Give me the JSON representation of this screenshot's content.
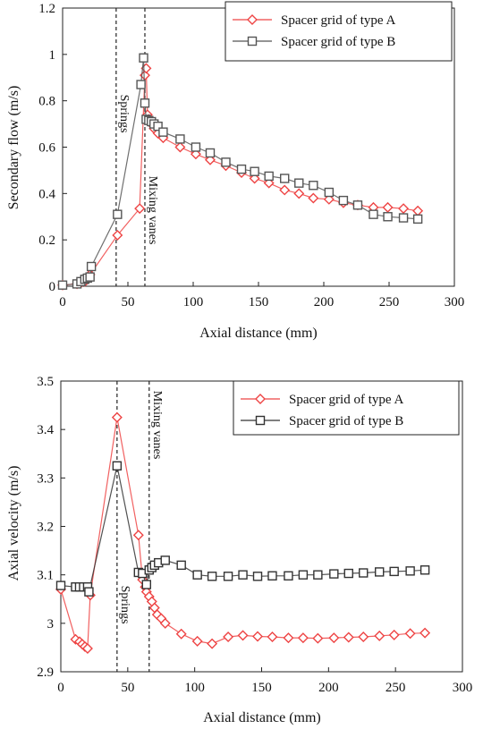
{
  "chart_data": [
    {
      "type": "line",
      "xlabel": "Axial distance (mm)",
      "ylabel": "Secondary flow (m/s)",
      "xlim": [
        0,
        300
      ],
      "ylim": [
        0,
        1.2
      ],
      "xticks": [
        0,
        50,
        100,
        150,
        200,
        250,
        300
      ],
      "xtick_labels": [
        "0",
        "50",
        "100",
        "150",
        "200",
        "250",
        "300"
      ],
      "yticks": [
        0,
        0.2,
        0.4,
        0.6,
        0.8,
        1.0,
        1.2
      ],
      "ytick_labels": [
        "0",
        "0.2",
        "0.4",
        "0.6",
        "0.8",
        "1",
        "1.2"
      ],
      "legend_position": "top-right",
      "annotations": [
        {
          "x": 41,
          "label": "Springs",
          "placement": "upper"
        },
        {
          "x": 63,
          "label": "Mixing vanes",
          "placement": "lower"
        }
      ],
      "series": [
        {
          "name": "Spacer grid of type A",
          "color": "#ee4444",
          "marker": "diamond",
          "x": [
            0,
            11,
            14,
            17,
            19,
            21,
            42,
            59,
            63,
            64,
            65,
            66,
            68,
            70,
            73,
            77,
            90,
            102,
            113,
            125,
            137,
            147,
            158,
            170,
            181,
            192,
            204,
            215,
            226,
            238,
            249,
            261,
            272
          ],
          "y": [
            0.005,
            0.01,
            0.015,
            0.02,
            0.03,
            0.05,
            0.22,
            0.335,
            0.91,
            0.94,
            0.74,
            0.72,
            0.7,
            0.68,
            0.66,
            0.64,
            0.6,
            0.57,
            0.545,
            0.52,
            0.49,
            0.465,
            0.445,
            0.415,
            0.4,
            0.38,
            0.375,
            0.36,
            0.35,
            0.34,
            0.34,
            0.335,
            0.325
          ]
        },
        {
          "name": "Spacer grid of type B",
          "color": "#555555",
          "marker": "square",
          "x": [
            0,
            11,
            14,
            17,
            19,
            21,
            22,
            42,
            60,
            62,
            63,
            64,
            66,
            68,
            70,
            73,
            77,
            90,
            102,
            113,
            125,
            137,
            147,
            158,
            170,
            181,
            192,
            204,
            215,
            226,
            238,
            249,
            261,
            272
          ],
          "y": [
            0.005,
            0.01,
            0.02,
            0.03,
            0.035,
            0.04,
            0.085,
            0.31,
            0.87,
            0.985,
            0.79,
            0.72,
            0.715,
            0.71,
            0.7,
            0.69,
            0.665,
            0.635,
            0.6,
            0.575,
            0.535,
            0.505,
            0.495,
            0.475,
            0.465,
            0.445,
            0.435,
            0.405,
            0.37,
            0.35,
            0.31,
            0.3,
            0.295,
            0.29
          ]
        }
      ]
    },
    {
      "type": "line",
      "xlabel": "Axial distance (mm)",
      "ylabel": "Axial velocity  (m/s)",
      "xlim": [
        0,
        300
      ],
      "ylim": [
        2.9,
        3.5
      ],
      "xticks": [
        0,
        50,
        100,
        150,
        200,
        250,
        300
      ],
      "xtick_labels": [
        "0",
        "50",
        "100",
        "150",
        "200",
        "250",
        "300"
      ],
      "yticks": [
        2.9,
        3.0,
        3.1,
        3.2,
        3.3,
        3.4,
        3.5
      ],
      "ytick_labels": [
        "2.9",
        "3",
        "3.1",
        "3.2",
        "3.3",
        "3.4",
        "3.5"
      ],
      "legend_position": "top-right",
      "annotations": [
        {
          "x": 42,
          "label": "Springs",
          "placement": "lower"
        },
        {
          "x": 66,
          "label": "Mixing vanes",
          "placement": "upper"
        }
      ],
      "series": [
        {
          "name": "Spacer grid of type A",
          "color": "#ee4444",
          "marker": "diamond",
          "x": [
            0,
            11,
            14,
            16,
            18,
            20,
            22,
            42,
            58,
            61,
            63,
            64,
            66,
            68,
            70,
            72,
            75,
            78,
            90,
            102,
            113,
            125,
            136,
            147,
            158,
            170,
            181,
            192,
            204,
            215,
            226,
            238,
            249,
            261,
            272
          ],
          "y": [
            3.07,
            2.967,
            2.962,
            2.957,
            2.952,
            2.948,
            3.058,
            3.425,
            3.182,
            3.09,
            3.075,
            3.065,
            3.055,
            3.045,
            3.032,
            3.018,
            3.01,
            3.0,
            2.978,
            2.963,
            2.958,
            2.972,
            2.975,
            2.973,
            2.972,
            2.97,
            2.97,
            2.969,
            2.97,
            2.971,
            2.972,
            2.974,
            2.976,
            2.979,
            2.98
          ]
        },
        {
          "name": "Spacer grid of type B",
          "color": "#333333",
          "marker": "square",
          "x": [
            0,
            11,
            14,
            17,
            20,
            21,
            42,
            58,
            61,
            64,
            66,
            68,
            70,
            73,
            78,
            90,
            102,
            113,
            125,
            136,
            147,
            158,
            170,
            181,
            192,
            204,
            215,
            226,
            238,
            249,
            261,
            272
          ],
          "y": [
            3.078,
            3.075,
            3.075,
            3.075,
            3.075,
            3.065,
            3.325,
            3.105,
            3.103,
            3.08,
            3.11,
            3.115,
            3.12,
            3.125,
            3.13,
            3.12,
            3.1,
            3.097,
            3.097,
            3.1,
            3.097,
            3.098,
            3.098,
            3.1,
            3.1,
            3.102,
            3.103,
            3.104,
            3.106,
            3.107,
            3.108,
            3.11
          ]
        }
      ]
    }
  ]
}
